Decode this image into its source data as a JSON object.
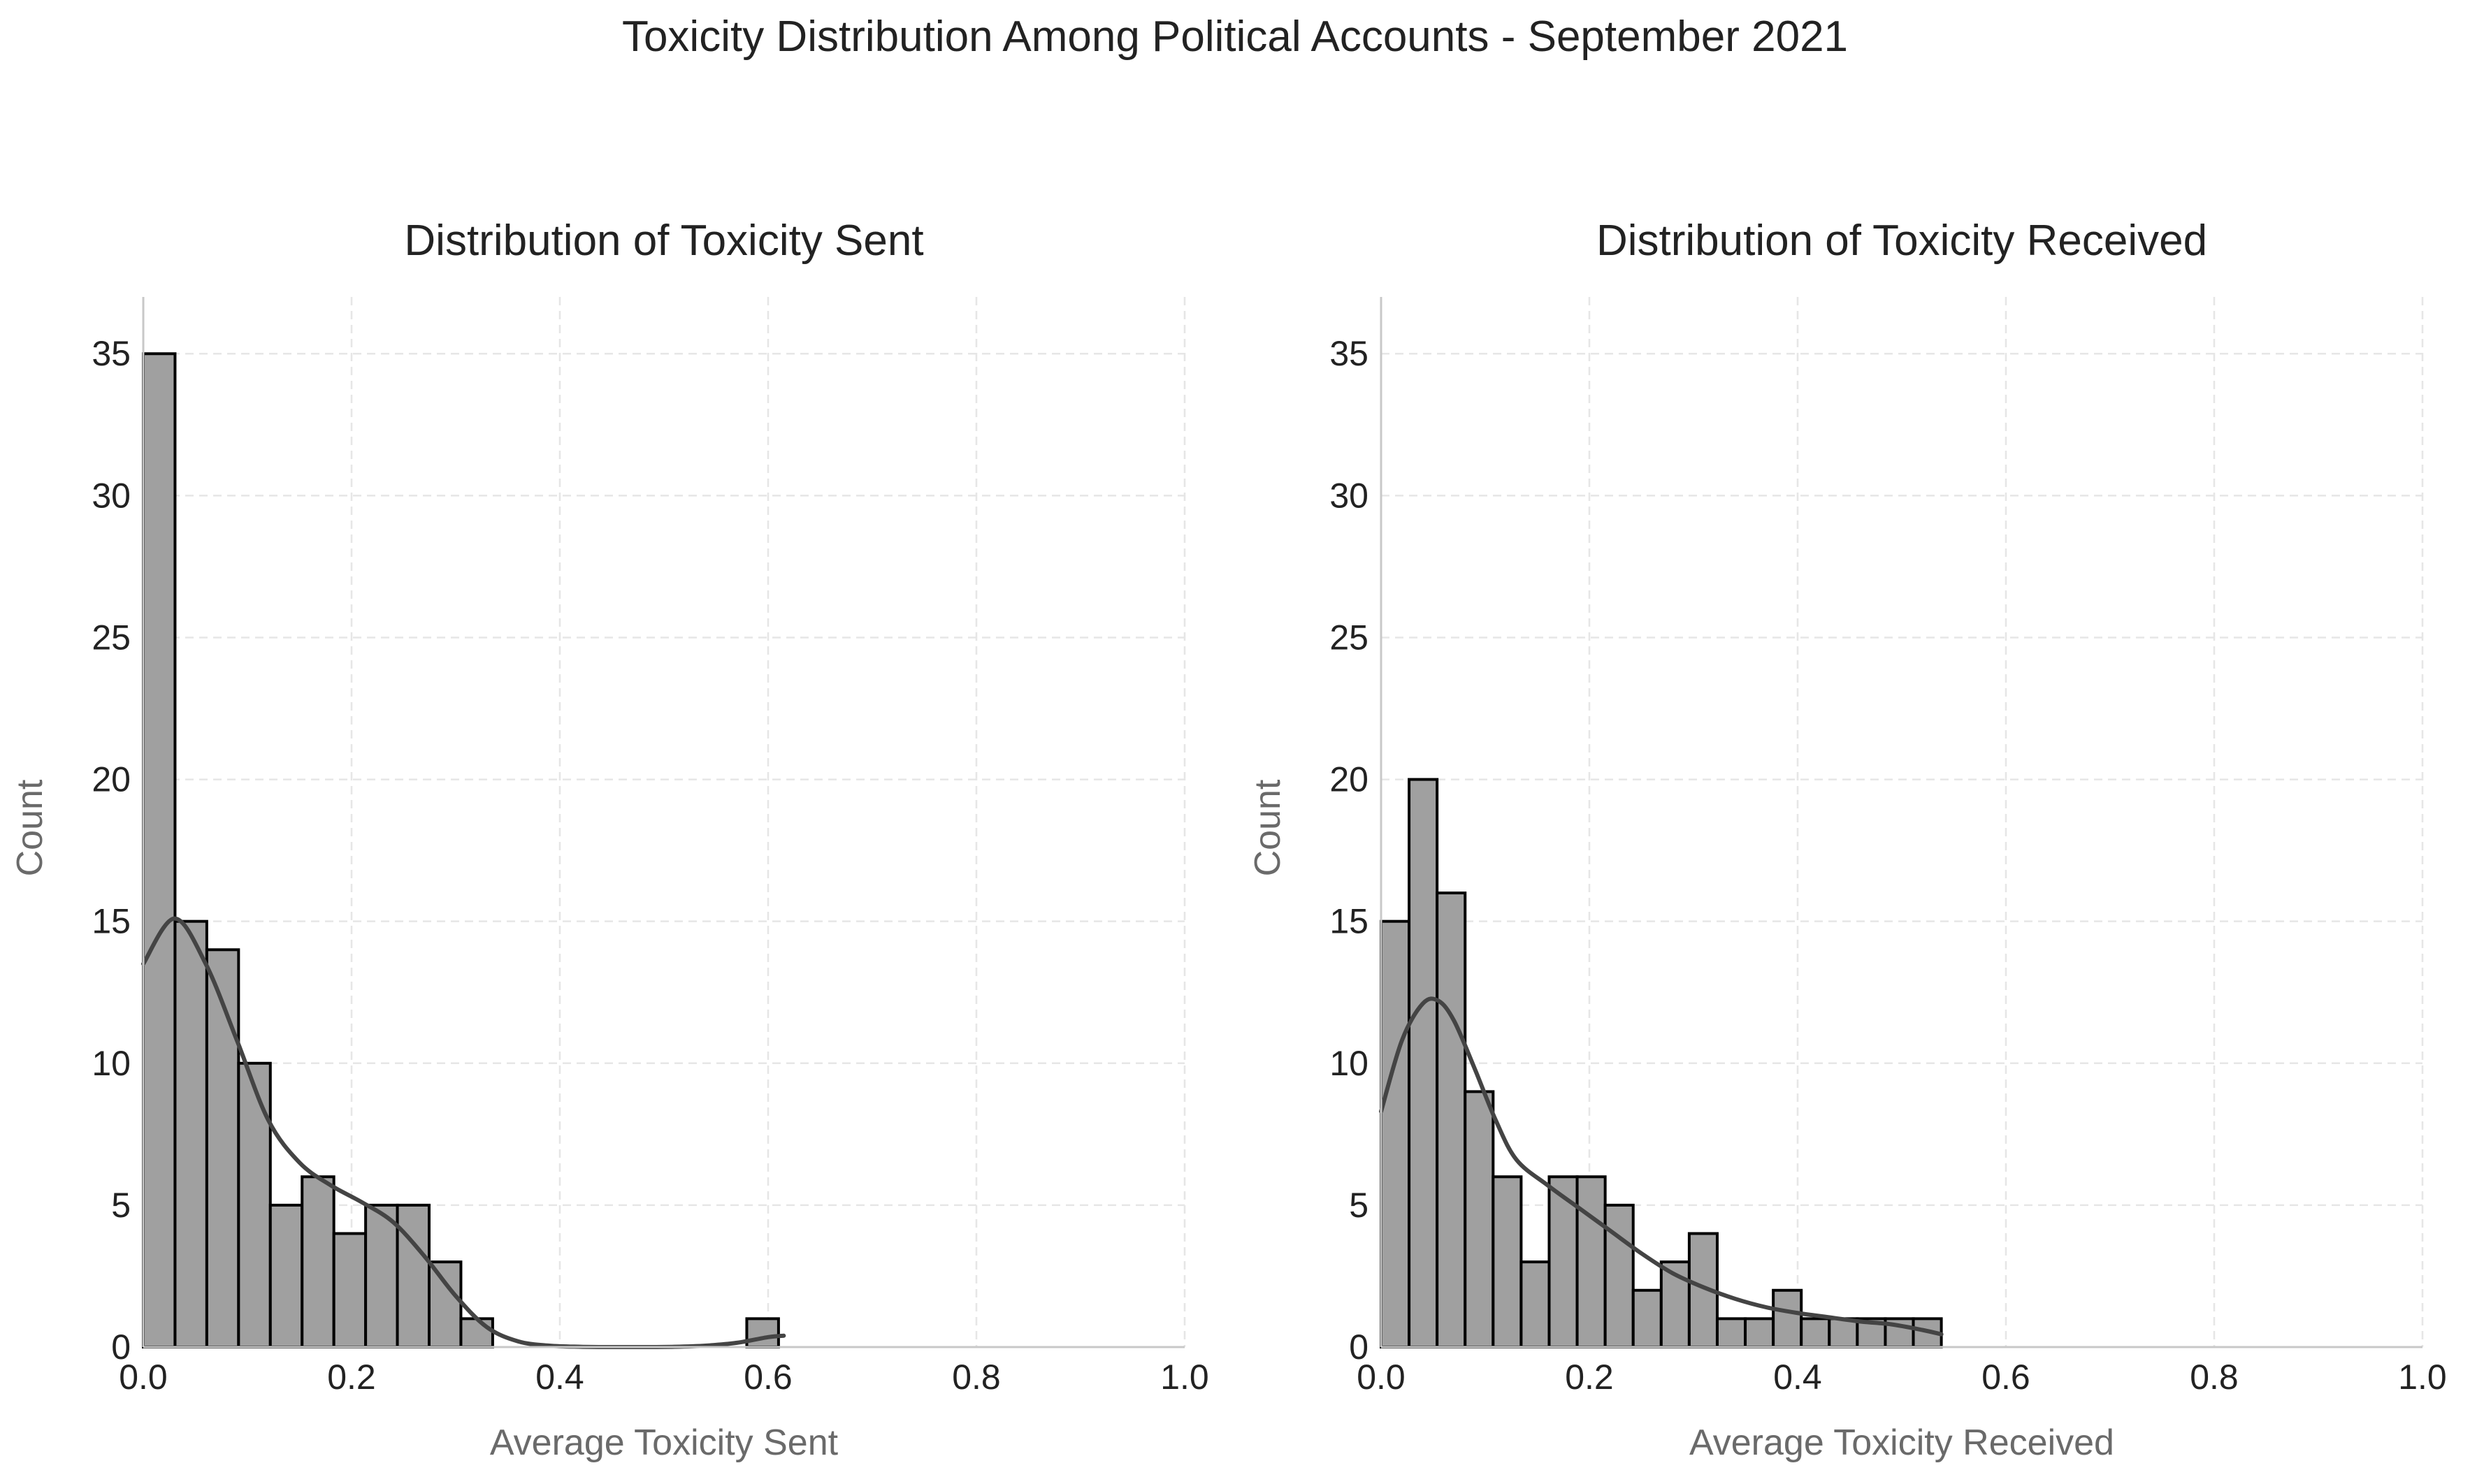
{
  "figure": {
    "title": "Toxicity Distribution Among Political Accounts - September 2021"
  },
  "chart_data": [
    {
      "type": "histogram",
      "title": "Distribution of Toxicity Sent",
      "xlabel": "Average Toxicity Sent",
      "ylabel": "Count",
      "xlim": [
        0.0,
        1.0
      ],
      "ylim": [
        0,
        37
      ],
      "xticks": [
        "0.0",
        "0.2",
        "0.4",
        "0.6",
        "0.8",
        "1.0"
      ],
      "yticks": [
        "0",
        "5",
        "10",
        "15",
        "20",
        "25",
        "30",
        "35"
      ],
      "grid": true,
      "bin_width": 0.0305,
      "bins": [
        {
          "x0": 0.0,
          "count": 35
        },
        {
          "x0": 0.0305,
          "count": 15
        },
        {
          "x0": 0.061,
          "count": 14
        },
        {
          "x0": 0.0915,
          "count": 10
        },
        {
          "x0": 0.122,
          "count": 5
        },
        {
          "x0": 0.1525,
          "count": 6
        },
        {
          "x0": 0.183,
          "count": 4
        },
        {
          "x0": 0.2135,
          "count": 5
        },
        {
          "x0": 0.244,
          "count": 5
        },
        {
          "x0": 0.2745,
          "count": 3
        },
        {
          "x0": 0.305,
          "count": 1
        },
        {
          "x0": 0.5795,
          "count": 1
        }
      ],
      "kde": {
        "x": [
          0.0,
          0.03,
          0.06,
          0.09,
          0.12,
          0.15,
          0.18,
          0.21,
          0.24,
          0.27,
          0.3,
          0.33,
          0.36,
          0.39,
          0.42,
          0.45,
          0.48,
          0.51,
          0.54,
          0.57,
          0.6,
          0.615
        ],
        "y": [
          13.5,
          15.1,
          13.5,
          10.8,
          8.0,
          6.5,
          5.7,
          5.1,
          4.4,
          3.2,
          1.8,
          0.7,
          0.2,
          0.05,
          0.01,
          0.0,
          0.0,
          0.01,
          0.05,
          0.15,
          0.35,
          0.4
        ]
      }
    },
    {
      "type": "histogram",
      "title": "Distribution of Toxicity Received",
      "xlabel": "Average Toxicity Received",
      "ylabel": "Count",
      "xlim": [
        0.0,
        1.0
      ],
      "ylim": [
        0,
        37
      ],
      "xticks": [
        "0.0",
        "0.2",
        "0.4",
        "0.6",
        "0.8",
        "1.0"
      ],
      "yticks": [
        "0",
        "5",
        "10",
        "15",
        "20",
        "25",
        "30",
        "35"
      ],
      "grid": true,
      "bin_width": 0.0269,
      "bins": [
        {
          "x0": 0.0,
          "count": 15
        },
        {
          "x0": 0.0269,
          "count": 20
        },
        {
          "x0": 0.0538,
          "count": 16
        },
        {
          "x0": 0.0807,
          "count": 9
        },
        {
          "x0": 0.1076,
          "count": 6
        },
        {
          "x0": 0.1345,
          "count": 3
        },
        {
          "x0": 0.1614,
          "count": 6
        },
        {
          "x0": 0.1883,
          "count": 6
        },
        {
          "x0": 0.2152,
          "count": 5
        },
        {
          "x0": 0.2421,
          "count": 2
        },
        {
          "x0": 0.269,
          "count": 3
        },
        {
          "x0": 0.2959,
          "count": 4
        },
        {
          "x0": 0.3228,
          "count": 1
        },
        {
          "x0": 0.3497,
          "count": 1
        },
        {
          "x0": 0.3766,
          "count": 2
        },
        {
          "x0": 0.4035,
          "count": 1
        },
        {
          "x0": 0.4304,
          "count": 1
        },
        {
          "x0": 0.4573,
          "count": 1
        },
        {
          "x0": 0.4842,
          "count": 1
        },
        {
          "x0": 0.5111,
          "count": 1
        }
      ],
      "kde": {
        "x": [
          0.0,
          0.02,
          0.04,
          0.055,
          0.07,
          0.09,
          0.11,
          0.13,
          0.16,
          0.19,
          0.22,
          0.25,
          0.28,
          0.31,
          0.34,
          0.37,
          0.4,
          0.43,
          0.46,
          0.49,
          0.52,
          0.538
        ],
        "y": [
          8.3,
          10.8,
          12.1,
          12.2,
          11.5,
          9.8,
          8.0,
          6.6,
          5.7,
          4.9,
          4.1,
          3.3,
          2.6,
          2.1,
          1.7,
          1.4,
          1.2,
          1.05,
          0.9,
          0.8,
          0.6,
          0.45
        ]
      }
    }
  ]
}
